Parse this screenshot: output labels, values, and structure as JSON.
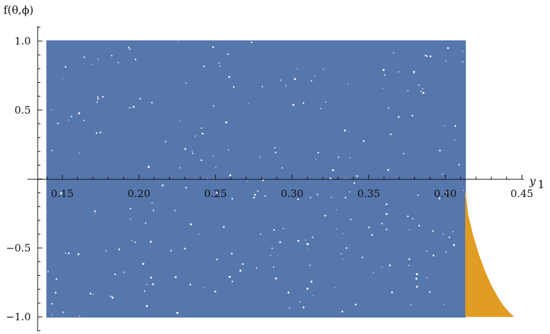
{
  "chart_data": {
    "type": "scatter",
    "title": "",
    "xlabel": "y",
    "xlabel_subscript": "1",
    "ylabel": "f(θ,ϕ)",
    "xlim": [
      0.138,
      0.45
    ],
    "ylim": [
      -1.0,
      1.0
    ],
    "x_ticks": [
      {
        "value": 0.15,
        "label": "0.15"
      },
      {
        "value": 0.2,
        "label": "0.20"
      },
      {
        "value": 0.25,
        "label": "0.25"
      },
      {
        "value": 0.3,
        "label": "0.30"
      },
      {
        "value": 0.35,
        "label": "0.35"
      },
      {
        "value": 0.4,
        "label": "0.40"
      },
      {
        "value": 0.45,
        "label": "0.45"
      }
    ],
    "y_ticks": [
      {
        "value": 1.0,
        "label": "1.0"
      },
      {
        "value": 0.5,
        "label": "0.5"
      },
      {
        "value": -0.5,
        "label": "−0.5"
      },
      {
        "value": -1.0,
        "label": "−1.0"
      }
    ],
    "grid": false,
    "legend": "none",
    "series": [
      {
        "color": "#5677ac",
        "region": "rectangle",
        "x_range": [
          0.14,
          0.413
        ],
        "y_range": [
          -1.0,
          1.0
        ]
      },
      {
        "color": "#e19c24",
        "region": "below-curve",
        "x_range": [
          0.413,
          0.445
        ],
        "boundary": [
          [
            0.413,
            -0.08
          ],
          [
            0.415,
            -0.26
          ],
          [
            0.418,
            -0.4
          ],
          [
            0.422,
            -0.55
          ],
          [
            0.426,
            -0.67
          ],
          [
            0.43,
            -0.77
          ],
          [
            0.434,
            -0.85
          ],
          [
            0.438,
            -0.92
          ],
          [
            0.442,
            -0.97
          ],
          [
            0.445,
            -1.0
          ]
        ],
        "y_floor": -1.0
      }
    ]
  }
}
